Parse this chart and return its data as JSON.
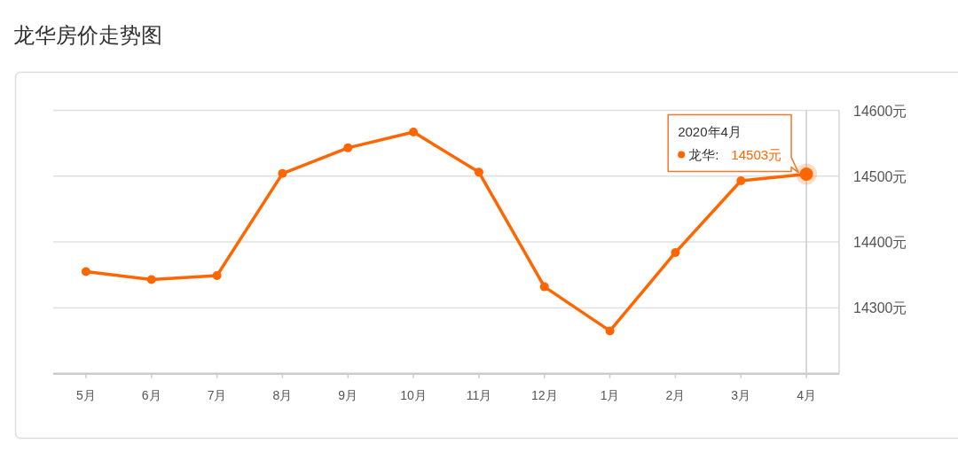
{
  "chart_data": {
    "type": "line",
    "title": "龙华房价走势图",
    "categories": [
      "5月",
      "6月",
      "7月",
      "8月",
      "9月",
      "10月",
      "11月",
      "12月",
      "1月",
      "2月",
      "3月",
      "4月"
    ],
    "series": [
      {
        "name": "龙华:",
        "color": "#ff6600",
        "values": [
          14355,
          14343,
          14349,
          14504,
          14543,
          14567,
          14506,
          14332,
          14265,
          14384,
          14493,
          14503
        ],
        "value_labels": [
          null,
          null,
          null,
          null,
          null,
          null,
          null,
          null,
          null,
          null,
          null,
          "14503元"
        ]
      }
    ],
    "ylim": [
      14200,
      14600
    ],
    "yticks": [
      {
        "value": 14200,
        "label": null
      },
      {
        "value": 14300,
        "label": "14300元"
      },
      {
        "value": 14400,
        "label": "14400元"
      },
      {
        "value": 14500,
        "label": "14500元"
      },
      {
        "value": 14600,
        "label": "14600元"
      }
    ],
    "grid": "y",
    "marker": "circle",
    "line_style": "solid",
    "annotations": [
      "2020年4月"
    ],
    "ref_lines": [
      {
        "axis": "x",
        "value": "4月",
        "color": "#cccccc"
      }
    ]
  }
}
